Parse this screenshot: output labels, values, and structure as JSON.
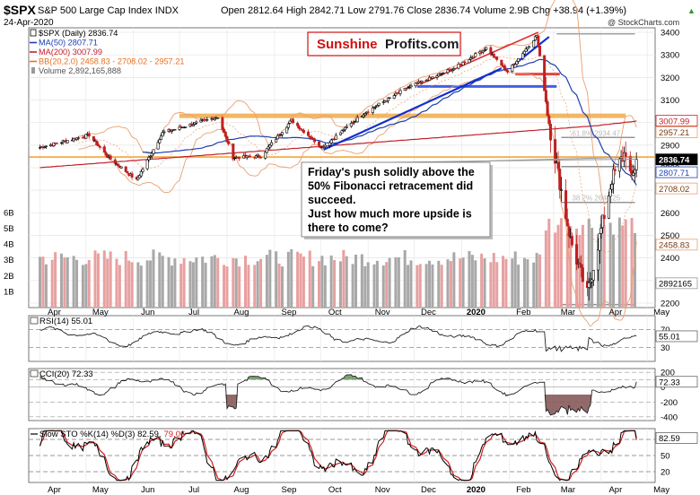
{
  "header": {
    "symbol": "$SPX",
    "description": "S&P 500 Large Cap Index",
    "exchange": "INDX",
    "date": "24-Apr-2020",
    "open_label": "Open",
    "open": "2812.64",
    "high_label": "High",
    "high": "2842.71",
    "low_label": "Low",
    "low": "2791.76",
    "close_label": "Close",
    "close": "2836.74",
    "volume_label": "Volume",
    "volume": "2.9B",
    "chg_label": "Chg",
    "chg": "+38.94 (+1.39%)",
    "chg_arrow": "▲",
    "copyright": "@ StockCharts.com"
  },
  "legend": [
    {
      "text": "$SPX (Daily) 2836.74",
      "color": "#000000"
    },
    {
      "text": "MA(50) 2807.71",
      "color": "#1f3fb0"
    },
    {
      "text": "MA(200) 3007.99",
      "color": "#c0202a"
    },
    {
      "text": "BB(20,2.0) 2458.83 - 2708.02 - 2957.21",
      "color": "#e87020"
    },
    {
      "text": "Volume 2,892,165,888",
      "color": "#555555"
    }
  ],
  "brand": {
    "part1": "Sunshine",
    "part2": "Profits.com",
    "color1": "#d01010",
    "color2": "#1a1a1a"
  },
  "annotation": {
    "lines": [
      "Friday's push solidly above the",
      "50% Fibonacci retracement did",
      "succeed.",
      "Just how much more upside is",
      "there to come?"
    ]
  },
  "price_axis": {
    "ticks": [
      "3400",
      "3300",
      "3200",
      "3100",
      "3000",
      "2900",
      "2800",
      "2700",
      "2600",
      "2500",
      "2400",
      "2300",
      "2200"
    ]
  },
  "volume_axis": {
    "ticks": [
      "6B",
      "5B",
      "4B",
      "3B",
      "2B",
      "1B"
    ]
  },
  "price_badges": [
    {
      "text": "3007.99",
      "type": "ma200"
    },
    {
      "text": "2957.21",
      "type": "bb"
    },
    {
      "text": "2836.74",
      "type": "close"
    },
    {
      "text": "2807.71",
      "type": "ma50"
    },
    {
      "text": "2708.02",
      "type": "bb"
    },
    {
      "text": "2458.83",
      "type": "bb"
    },
    {
      "text": "2892165",
      "type": "volume"
    }
  ],
  "fib_labels": [
    "61.8% 2934.47",
    "38.2% 2646.25"
  ],
  "months": [
    "Apr",
    "May",
    "Jun",
    "Jul",
    "Aug",
    "Sep",
    "Oct",
    "Nov",
    "Dec",
    "2020",
    "Feb",
    "Mar",
    "Apr",
    "May"
  ],
  "rsi": {
    "label": "RSI(14) 55.01",
    "value": "55.01",
    "ticks": [
      "70",
      "30"
    ]
  },
  "cci": {
    "label": "CCI(20) 72.33",
    "value": "72.33",
    "ticks": [
      "200",
      "100",
      "0",
      "-200",
      "-400"
    ]
  },
  "sto": {
    "label_prefix": "Slow STO %K(14) %D(3) 82.59,",
    "label_d": "79.06",
    "k_value": "82.59",
    "ticks": [
      "80",
      "50",
      "20"
    ]
  },
  "colors": {
    "ma50": "#1f3fb0",
    "ma200": "#c0202a",
    "bb": "#e8a070",
    "fib": "#f0a030",
    "trend_blue": "#1030d0",
    "red_support": "#e03030",
    "blue_support": "#3050e0",
    "volume_up": "#a8a8a8",
    "volume_down": "#e8a0a0",
    "cci_pos": "#6a9060",
    "cci_neg": "#805050"
  },
  "chart_data": [
    {
      "type": "candlestick",
      "title": "$SPX S&P 500 Large Cap Index INDX",
      "series": [
        {
          "name": "$SPX (Daily)",
          "values": [
            {
              "x": "2019-04",
              "y": 2890
            },
            {
              "x": "2019-05-03",
              "y": 2945
            },
            {
              "x": "2019-05-15",
              "y": 2850
            },
            {
              "x": "2019-06-03",
              "y": 2745
            },
            {
              "x": "2019-06-20",
              "y": 2955
            },
            {
              "x": "2019-07-26",
              "y": 3025
            },
            {
              "x": "2019-08-05",
              "y": 2845
            },
            {
              "x": "2019-08-23",
              "y": 2850
            },
            {
              "x": "2019-09-12",
              "y": 3010
            },
            {
              "x": "2019-10-02",
              "y": 2890
            },
            {
              "x": "2019-10-30",
              "y": 3045
            },
            {
              "x": "2019-11-27",
              "y": 3155
            },
            {
              "x": "2019-12-27",
              "y": 3240
            },
            {
              "x": "2020-01-17",
              "y": 3330
            },
            {
              "x": "2020-01-31",
              "y": 3225
            },
            {
              "x": "2020-02-19",
              "y": 3386
            },
            {
              "x": "2020-02-28",
              "y": 2955
            },
            {
              "x": "2020-03-12",
              "y": 2480
            },
            {
              "x": "2020-03-23",
              "y": 2237
            },
            {
              "x": "2020-04-08",
              "y": 2750
            },
            {
              "x": "2020-04-17",
              "y": 2875
            },
            {
              "x": "2020-04-21",
              "y": 2735
            },
            {
              "x": "2020-04-24",
              "y": 2836.74
            }
          ]
        },
        {
          "name": "MA(50)",
          "last": 2807.71
        },
        {
          "name": "MA(200)",
          "last": 3007.99
        },
        {
          "name": "BB(20,2.0)",
          "lower": 2458.83,
          "middle": 2708.02,
          "upper": 2957.21
        }
      ],
      "ylim": [
        2180,
        3420
      ]
    },
    {
      "type": "bar",
      "title": "Volume",
      "last": 2892165888,
      "ylim": [
        0,
        6000000000
      ]
    },
    {
      "type": "line",
      "title": "RSI(14)",
      "last": 55.01,
      "ylim": [
        0,
        100
      ]
    },
    {
      "type": "area",
      "title": "CCI(20)",
      "last": 72.33,
      "ylim": [
        -450,
        250
      ]
    },
    {
      "type": "line",
      "title": "Slow STO %K(14) %D(3)",
      "series": [
        {
          "name": "%K",
          "last": 82.59
        },
        {
          "name": "%D",
          "last": 79.06
        }
      ],
      "ylim": [
        0,
        100
      ]
    }
  ]
}
